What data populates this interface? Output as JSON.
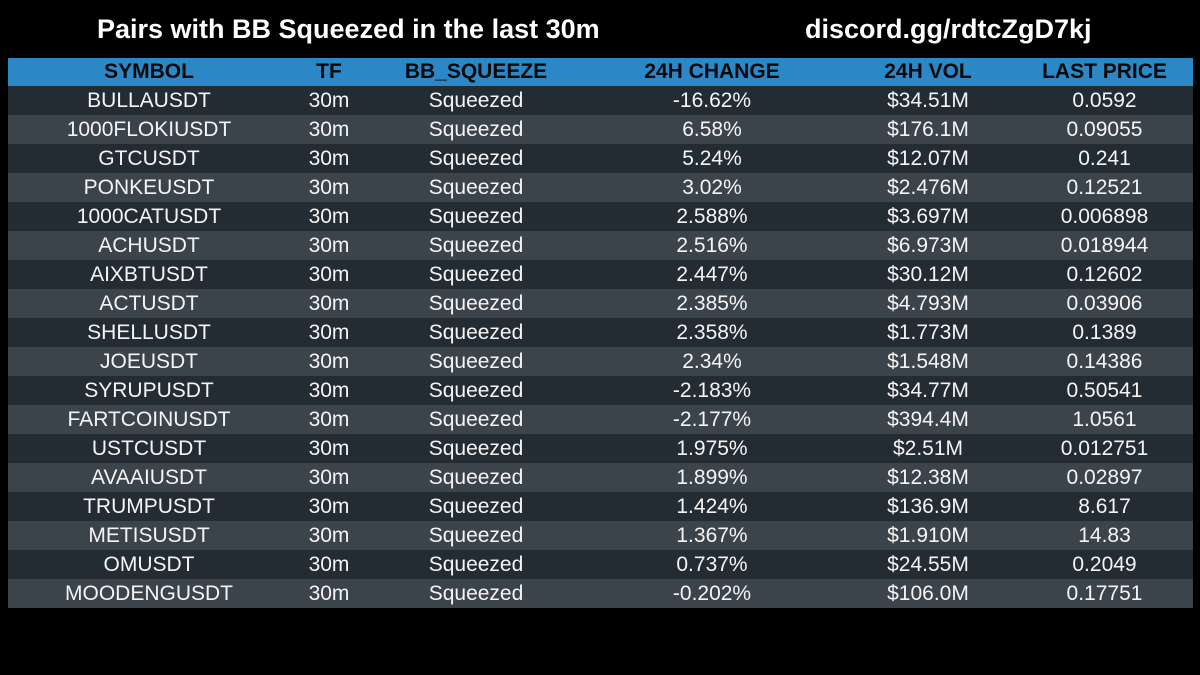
{
  "header": {
    "title": "Pairs with BB Squeezed in the last 30m",
    "link": "discord.gg/rdtcZgD7kj"
  },
  "table": {
    "columns": [
      "SYMBOL",
      "TF",
      "BB_SQUEEZE",
      "24H CHANGE",
      "24H VOL",
      "LAST PRICE"
    ],
    "rows": [
      [
        "BULLAUSDT",
        "30m",
        "Squeezed",
        "-16.62%",
        "$34.51M",
        "0.0592"
      ],
      [
        "1000FLOKIUSDT",
        "30m",
        "Squeezed",
        "6.58%",
        "$176.1M",
        "0.09055"
      ],
      [
        "GTCUSDT",
        "30m",
        "Squeezed",
        "5.24%",
        "$12.07M",
        "0.241"
      ],
      [
        "PONKEUSDT",
        "30m",
        "Squeezed",
        "3.02%",
        "$2.476M",
        "0.12521"
      ],
      [
        "1000CATUSDT",
        "30m",
        "Squeezed",
        "2.588%",
        "$3.697M",
        "0.006898"
      ],
      [
        "ACHUSDT",
        "30m",
        "Squeezed",
        "2.516%",
        "$6.973M",
        "0.018944"
      ],
      [
        "AIXBTUSDT",
        "30m",
        "Squeezed",
        "2.447%",
        "$30.12M",
        "0.12602"
      ],
      [
        "ACTUSDT",
        "30m",
        "Squeezed",
        "2.385%",
        "$4.793M",
        "0.03906"
      ],
      [
        "SHELLUSDT",
        "30m",
        "Squeezed",
        "2.358%",
        "$1.773M",
        "0.1389"
      ],
      [
        "JOEUSDT",
        "30m",
        "Squeezed",
        "2.34%",
        "$1.548M",
        "0.14386"
      ],
      [
        "SYRUPUSDT",
        "30m",
        "Squeezed",
        "-2.183%",
        "$34.77M",
        "0.50541"
      ],
      [
        "FARTCOINUSDT",
        "30m",
        "Squeezed",
        "-2.177%",
        "$394.4M",
        "1.0561"
      ],
      [
        "USTCUSDT",
        "30m",
        "Squeezed",
        "1.975%",
        "$2.51M",
        "0.012751"
      ],
      [
        "AVAAIUSDT",
        "30m",
        "Squeezed",
        "1.899%",
        "$12.38M",
        "0.02897"
      ],
      [
        "TRUMPUSDT",
        "30m",
        "Squeezed",
        "1.424%",
        "$136.9M",
        "8.617"
      ],
      [
        "METISUSDT",
        "30m",
        "Squeezed",
        "1.367%",
        "$1.910M",
        "14.83"
      ],
      [
        "OMUSDT",
        "30m",
        "Squeezed",
        "0.737%",
        "$24.55M",
        "0.2049"
      ],
      [
        "MOODENGUSDT",
        "30m",
        "Squeezed",
        "-0.202%",
        "$106.0M",
        "0.17751"
      ]
    ]
  }
}
